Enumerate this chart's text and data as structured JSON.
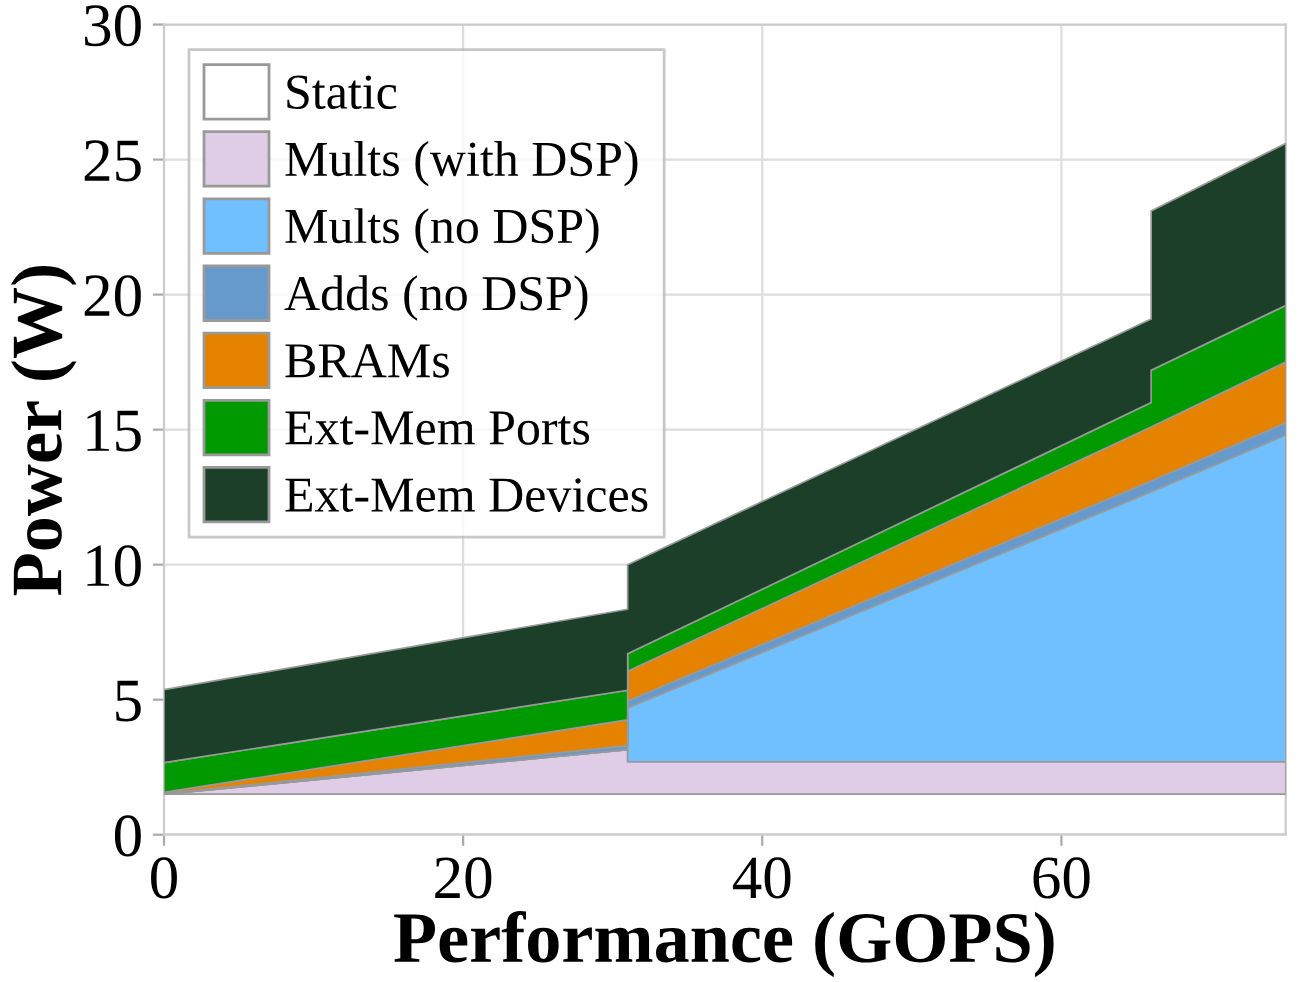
{
  "chart_data": {
    "type": "area",
    "stacked": true,
    "xlabel": "Performance (GOPS)",
    "ylabel": "Power (W)",
    "x": [
      0,
      31,
      31,
      66,
      66,
      75
    ],
    "series": [
      {
        "name": "Static",
        "color": "#ffffff",
        "values": [
          1.5,
          1.5,
          1.5,
          1.5,
          1.5,
          1.5
        ]
      },
      {
        "name": "Mults (with DSP)",
        "color": "#dfcce6",
        "values": [
          0,
          1.65,
          1.2,
          1.2,
          1.2,
          1.2
        ]
      },
      {
        "name": "Mults (no DSP)",
        "color": "#70bfff",
        "values": [
          0,
          0,
          2.0,
          10.0,
          10.0,
          12.1
        ]
      },
      {
        "name": "Adds (no DSP)",
        "color": "#6699cc",
        "values": [
          0.02,
          0.15,
          0.25,
          0.4,
          0.4,
          0.45
        ]
      },
      {
        "name": "BRAMs",
        "color": "#e58200",
        "values": [
          0.05,
          0.95,
          1.1,
          2.0,
          2.0,
          2.25
        ]
      },
      {
        "name": "Ext-Mem Ports",
        "color": "#009900",
        "values": [
          1.1,
          1.1,
          0.65,
          0.9,
          2.1,
          2.1
        ]
      },
      {
        "name": "Ext-Mem Devices",
        "color": "#1b3f29",
        "values": [
          2.7,
          3.0,
          3.3,
          3.1,
          5.9,
          6.0
        ]
      }
    ],
    "xlim": [
      0,
      75
    ],
    "ylim": [
      0,
      30
    ],
    "xticks": [
      0,
      20,
      40,
      60
    ],
    "yticks": [
      0,
      5,
      10,
      15,
      20,
      25,
      30
    ],
    "grid": true,
    "legend": "top left"
  }
}
